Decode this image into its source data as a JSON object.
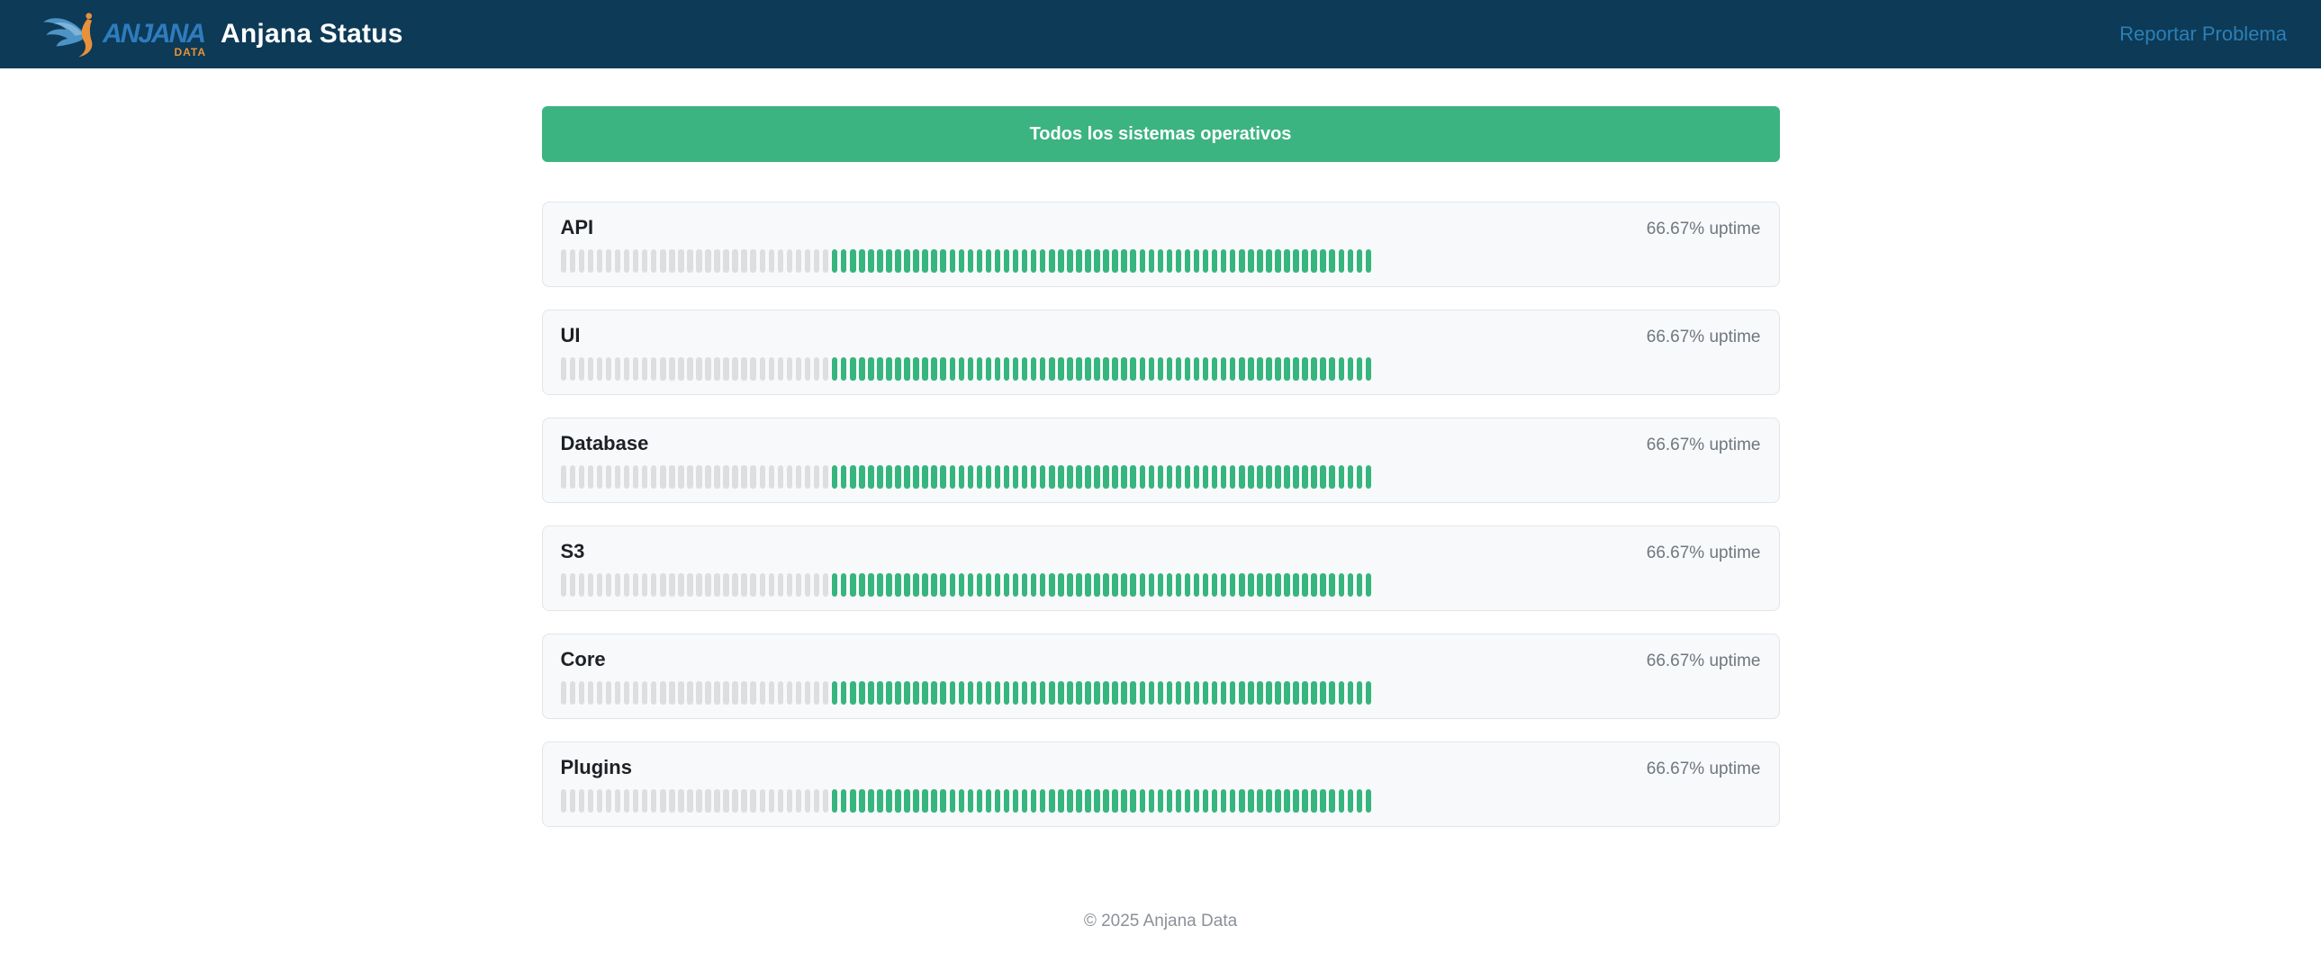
{
  "header": {
    "brand": {
      "name": "ANJANA",
      "sub": "DATA"
    },
    "title": "Anjana Status",
    "report_link_label": "Reportar Problema"
  },
  "status_banner": {
    "label": "Todos los sistemas operativos"
  },
  "services": [
    {
      "name": "API",
      "uptime_label": "66.67% uptime"
    },
    {
      "name": "UI",
      "uptime_label": "66.67% uptime"
    },
    {
      "name": "Database",
      "uptime_label": "66.67% uptime"
    },
    {
      "name": "S3",
      "uptime_label": "66.67% uptime"
    },
    {
      "name": "Core",
      "uptime_label": "66.67% uptime"
    },
    {
      "name": "Plugins",
      "uptime_label": "66.67% uptime"
    }
  ],
  "uptime_chart": {
    "type": "bar",
    "bars_total": 90,
    "leading_gray_bars": 30,
    "trailing_green_bars": 60
  },
  "footer": {
    "copyright": "© 2025 Anjana Data"
  },
  "colors": {
    "header_bg": "#0d3a56",
    "link_blue": "#2b7fb8",
    "banner_green": "#3cb481",
    "bar_green": "#37b57f",
    "bar_gray": "#dcdee0",
    "card_bg": "#f8f9fa",
    "card_border": "#e2e5e8",
    "muted_text": "#6f7780",
    "brand_blue": "#2e7cbe",
    "brand_orange": "#e8923a"
  }
}
